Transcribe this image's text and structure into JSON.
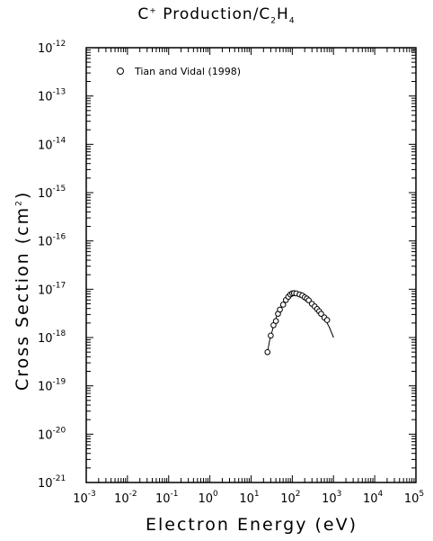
{
  "chart_data": {
    "type": "scatter",
    "title_prefix": "C",
    "title_charge": "+",
    "title_rest": " Production/C",
    "title_sub1": "2",
    "title_mid": "H",
    "title_sub2": "4",
    "xlabel": "Electron Energy (eV)",
    "ylabel_prefix": "Cross Section (cm",
    "ylabel_sup": "2",
    "ylabel_suffix": ")",
    "xscale": "log",
    "yscale": "log",
    "xlim": [
      0.001,
      100000
    ],
    "ylim": [
      1e-21,
      1e-12
    ],
    "x_tick_base": "10",
    "x_tick_exponents": [
      "-3",
      "-2",
      "-1",
      "0",
      "1",
      "2",
      "3",
      "4",
      "5"
    ],
    "y_tick_base": "10",
    "y_tick_exponents": [
      "-21",
      "-20",
      "-19",
      "-18",
      "-17",
      "-16",
      "-15",
      "-14",
      "-13",
      "-12"
    ],
    "legend": {
      "label": "Tian and Vidal (1998)",
      "placement": "top-left",
      "marker": "open-circle"
    },
    "series": [
      {
        "name": "Tian and Vidal (1998)",
        "marker": "open-circle",
        "x": [
          25,
          30,
          35,
          40,
          45,
          50,
          60,
          70,
          80,
          90,
          100,
          110,
          125,
          150,
          175,
          200,
          225,
          250,
          300,
          350,
          400,
          450,
          500,
          600,
          700
        ],
        "y": [
          5e-19,
          1.1e-18,
          1.8e-18,
          2.2e-18,
          3.1e-18,
          3.8e-18,
          4.8e-18,
          6e-18,
          7e-18,
          7.8e-18,
          8.2e-18,
          8.3e-18,
          8.2e-18,
          7.8e-18,
          7.4e-18,
          6.8e-18,
          6.4e-18,
          5.9e-18,
          5e-18,
          4.4e-18,
          3.9e-18,
          3.5e-18,
          3.1e-18,
          2.6e-18,
          2.3e-18
        ]
      },
      {
        "name": "",
        "marker": "line",
        "x": [
          25,
          28,
          32,
          36,
          40,
          45,
          50,
          60,
          70,
          80,
          90,
          100,
          120,
          150,
          200,
          250,
          300,
          400,
          500,
          600,
          700,
          800,
          1000
        ],
        "y": [
          5e-19,
          8.5e-19,
          1.3e-18,
          1.9e-18,
          2.5e-18,
          3.2e-18,
          3.9e-18,
          5e-18,
          6.1e-18,
          7e-18,
          7.7e-18,
          8.1e-18,
          8.3e-18,
          7.9e-18,
          6.9e-18,
          5.9e-18,
          5.1e-18,
          3.9e-18,
          3.1e-18,
          2.5e-18,
          2e-18,
          1.6e-18,
          1e-18
        ]
      }
    ]
  }
}
